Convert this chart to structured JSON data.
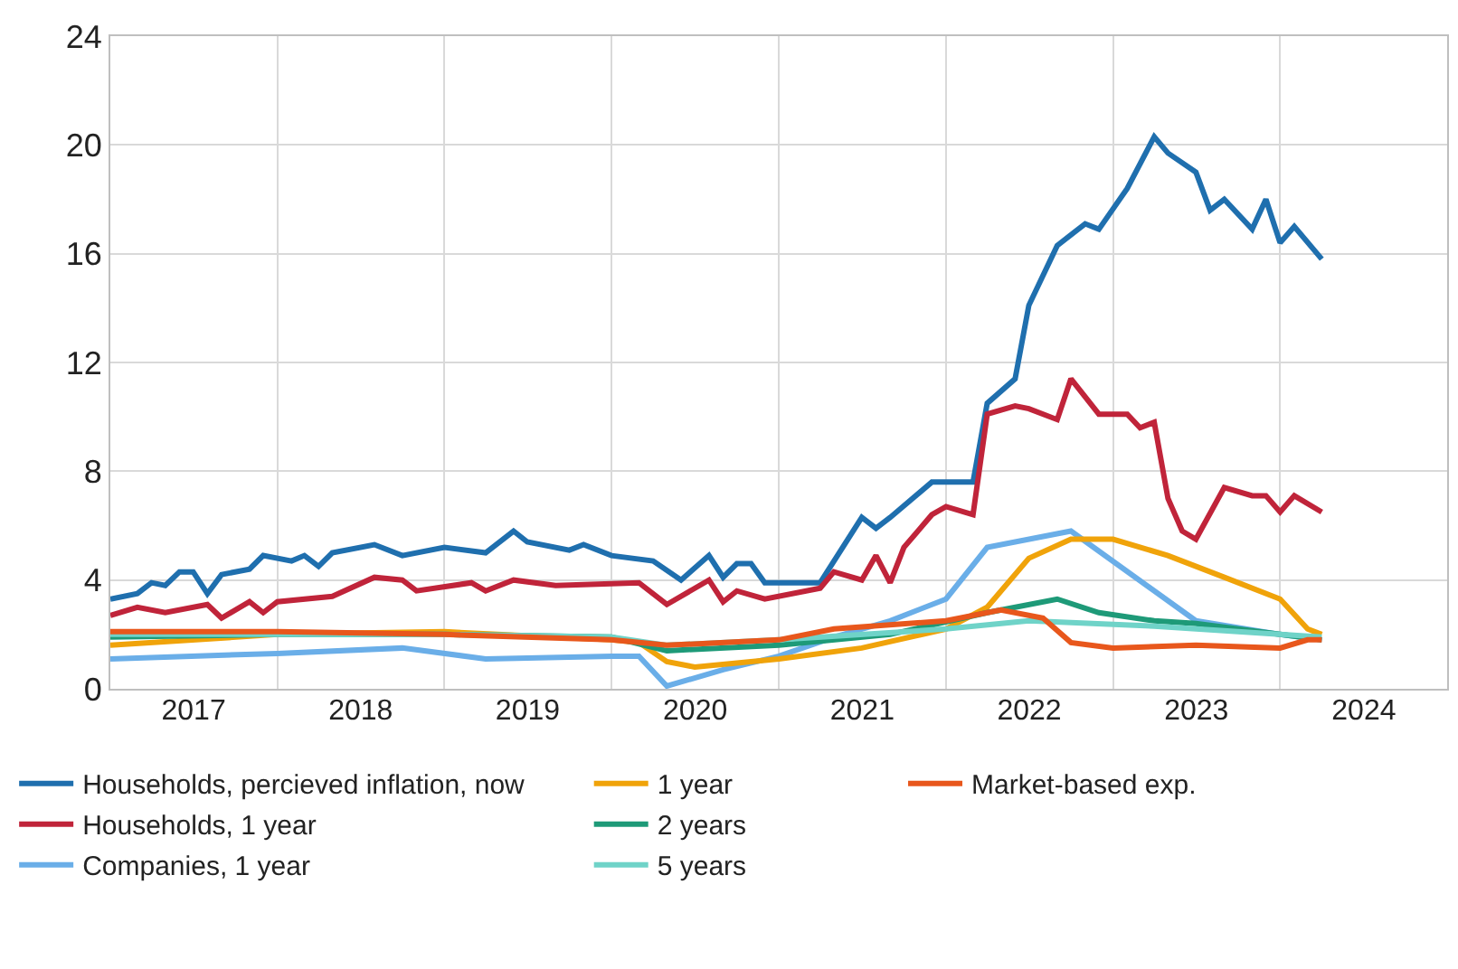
{
  "chart_data": {
    "type": "line",
    "xlim": [
      "2017-01-01",
      "2024-12-31"
    ],
    "xticks": [
      {
        "value": "2017-07-02",
        "label": "2017"
      },
      {
        "value": "2018-01-01",
        "label": null
      },
      {
        "value": "2018-07-02",
        "label": "2018"
      },
      {
        "value": "2019-01-01",
        "label": null
      },
      {
        "value": "2019-07-02",
        "label": "2019"
      },
      {
        "value": "2020-01-01",
        "label": null
      },
      {
        "value": "2020-07-02",
        "label": "2020"
      },
      {
        "value": "2021-01-01",
        "label": null
      },
      {
        "value": "2021-07-02",
        "label": "2021"
      },
      {
        "value": "2022-01-01",
        "label": null
      },
      {
        "value": "2022-07-02",
        "label": "2022"
      },
      {
        "value": "2023-01-01",
        "label": null
      },
      {
        "value": "2023-07-02",
        "label": "2023"
      },
      {
        "value": "2024-01-01",
        "label": null
      },
      {
        "value": "2024-07-02",
        "label": "2024"
      }
    ],
    "ylim": [
      0,
      24
    ],
    "yticks": [
      0,
      4,
      8,
      12,
      16,
      20,
      24
    ],
    "grid": true,
    "legend": "bottom",
    "marker": "none",
    "line_style": "solid",
    "series": [
      {
        "name": "Households, percieved inflation, now",
        "color": "#1f6fae",
        "x": [
          "2017-01",
          "2017-03",
          "2017-04",
          "2017-05",
          "2017-06",
          "2017-07",
          "2017-08",
          "2017-09",
          "2017-11",
          "2017-12",
          "2018-02",
          "2018-03",
          "2018-04",
          "2018-05",
          "2018-08",
          "2018-10",
          "2019-01",
          "2019-04",
          "2019-06",
          "2019-07",
          "2019-10",
          "2019-11",
          "2020-01",
          "2020-04",
          "2020-06",
          "2020-08",
          "2020-09",
          "2020-10",
          "2020-11",
          "2020-12",
          "2021-04",
          "2021-07",
          "2021-08",
          "2021-09",
          "2021-12",
          "2022-03",
          "2022-04",
          "2022-06",
          "2022-07",
          "2022-08",
          "2022-09",
          "2022-11",
          "2022-12",
          "2023-02",
          "2023-04",
          "2023-05",
          "2023-07",
          "2023-08",
          "2023-09",
          "2023-11",
          "2023-12",
          "2024-01",
          "2024-02",
          "2024-04"
        ],
        "values": [
          3.3,
          3.5,
          3.9,
          3.8,
          4.3,
          4.3,
          3.5,
          4.2,
          4.4,
          4.9,
          4.7,
          4.9,
          4.5,
          5.0,
          5.3,
          4.9,
          5.2,
          5.0,
          5.8,
          5.4,
          5.1,
          5.3,
          4.9,
          4.7,
          4.0,
          4.9,
          4.1,
          4.6,
          4.6,
          3.9,
          3.9,
          6.3,
          5.9,
          6.3,
          7.6,
          7.6,
          10.5,
          11.4,
          14.1,
          15.2,
          16.3,
          17.1,
          16.9,
          18.4,
          20.3,
          19.7,
          19.0,
          17.6,
          18.0,
          16.9,
          18.0,
          16.4,
          17.0,
          15.8
        ]
      },
      {
        "name": "Households, 1 year",
        "color": "#c0243a",
        "x": [
          "2017-01",
          "2017-03",
          "2017-05",
          "2017-08",
          "2017-09",
          "2017-11",
          "2017-12",
          "2018-01",
          "2018-05",
          "2018-08",
          "2018-10",
          "2018-11",
          "2019-03",
          "2019-04",
          "2019-06",
          "2019-09",
          "2020-03",
          "2020-05",
          "2020-08",
          "2020-09",
          "2020-10",
          "2020-12",
          "2021-04",
          "2021-05",
          "2021-07",
          "2021-08",
          "2021-09",
          "2021-10",
          "2021-12",
          "2022-01",
          "2022-03",
          "2022-04",
          "2022-06",
          "2022-07",
          "2022-09",
          "2022-10",
          "2022-12",
          "2023-02",
          "2023-03",
          "2023-04",
          "2023-05",
          "2023-06",
          "2023-07",
          "2023-09",
          "2023-11",
          "2023-12",
          "2024-01",
          "2024-02",
          "2024-04"
        ],
        "values": [
          2.7,
          3.0,
          2.8,
          3.1,
          2.6,
          3.2,
          2.8,
          3.2,
          3.4,
          4.1,
          4.0,
          3.6,
          3.9,
          3.6,
          4.0,
          3.8,
          3.9,
          3.1,
          4.0,
          3.2,
          3.6,
          3.3,
          3.7,
          4.3,
          4.0,
          4.9,
          3.9,
          5.2,
          6.4,
          6.7,
          6.4,
          10.1,
          10.4,
          10.3,
          9.9,
          11.4,
          10.1,
          10.1,
          9.6,
          9.8,
          7.0,
          5.8,
          5.5,
          7.4,
          7.1,
          7.1,
          6.5,
          7.1,
          6.5
        ]
      },
      {
        "name": "Companies, 1 year",
        "color": "#6aaee8",
        "x": [
          "2017-01",
          "2018-01",
          "2018-10",
          "2019-04",
          "2020-01",
          "2020-03",
          "2020-05",
          "2020-09",
          "2021-01",
          "2021-05",
          "2021-09",
          "2022-01",
          "2022-04",
          "2022-10",
          "2023-07",
          "2024-01",
          "2024-04"
        ],
        "values": [
          1.1,
          1.3,
          1.5,
          1.1,
          1.2,
          1.2,
          0.1,
          0.7,
          1.2,
          1.9,
          2.5,
          3.3,
          5.2,
          5.8,
          2.5,
          2.0,
          1.8
        ]
      },
      {
        "name": "1 year",
        "color": "#f0a30a",
        "x": [
          "2017-01",
          "2018-01",
          "2019-01",
          "2020-01",
          "2020-03",
          "2020-05",
          "2020-07",
          "2021-01",
          "2021-07",
          "2022-01",
          "2022-04",
          "2022-07",
          "2022-10",
          "2023-01",
          "2023-05",
          "2023-09",
          "2024-01",
          "2024-03",
          "2024-04"
        ],
        "values": [
          1.6,
          2.0,
          2.1,
          1.8,
          1.7,
          1.0,
          0.8,
          1.1,
          1.5,
          2.2,
          3.0,
          4.8,
          5.5,
          5.5,
          4.9,
          4.1,
          3.3,
          2.2,
          2.0
        ]
      },
      {
        "name": "2 years",
        "color": "#1e9a78",
        "x": [
          "2017-01",
          "2018-01",
          "2019-01",
          "2020-01",
          "2020-05",
          "2021-01",
          "2021-09",
          "2022-04",
          "2022-09",
          "2022-12",
          "2023-04",
          "2023-07",
          "2024-01",
          "2024-04"
        ],
        "values": [
          1.9,
          2.0,
          2.0,
          1.9,
          1.4,
          1.6,
          2.0,
          2.8,
          3.3,
          2.8,
          2.5,
          2.4,
          2.0,
          1.8
        ]
      },
      {
        "name": "5 years",
        "color": "#6fd3c8",
        "x": [
          "2017-01",
          "2019-01",
          "2020-01",
          "2020-05",
          "2021-01",
          "2022-01",
          "2022-07",
          "2023-04",
          "2024-04"
        ],
        "values": [
          2.0,
          2.0,
          1.9,
          1.6,
          1.8,
          2.2,
          2.5,
          2.3,
          1.9
        ]
      },
      {
        "name": "Market-based exp.",
        "color": "#e8571c",
        "x": [
          "2017-01",
          "2018-01",
          "2019-01",
          "2020-01",
          "2020-05",
          "2021-01",
          "2021-05",
          "2022-01",
          "2022-05",
          "2022-08",
          "2022-10",
          "2023-01",
          "2023-07",
          "2024-01",
          "2024-03",
          "2024-04"
        ],
        "values": [
          2.1,
          2.1,
          2.0,
          1.8,
          1.6,
          1.8,
          2.2,
          2.5,
          2.9,
          2.6,
          1.7,
          1.5,
          1.6,
          1.5,
          1.8,
          1.8
        ]
      }
    ]
  }
}
